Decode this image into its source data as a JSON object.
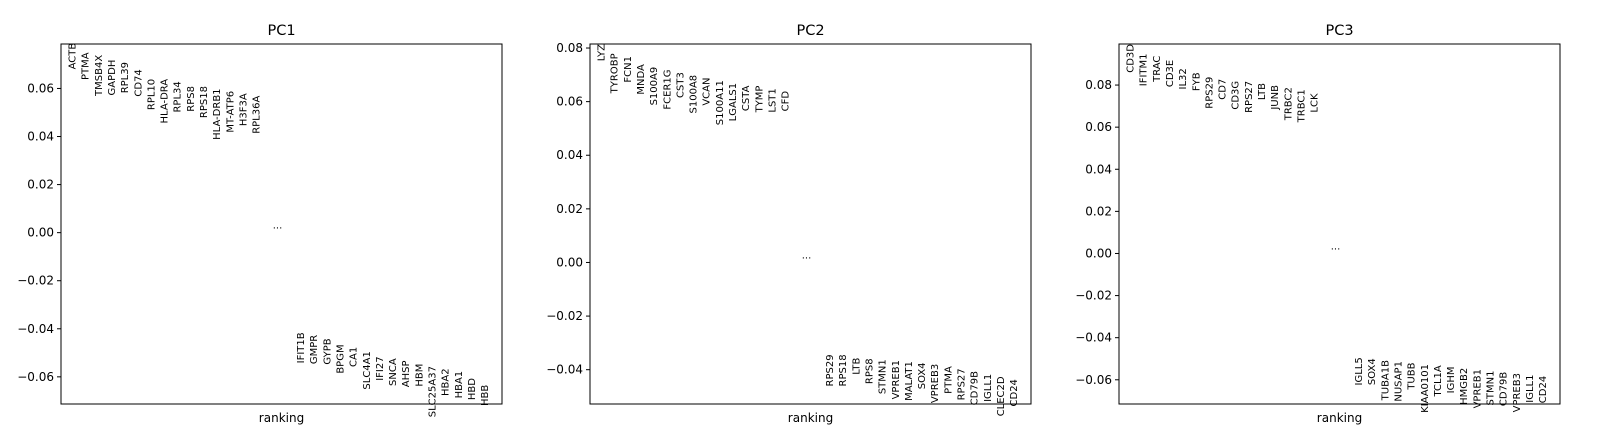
{
  "chart_data": [
    {
      "type": "scatter",
      "title": "PC1",
      "xlabel": "ranking",
      "ylabel": "",
      "ylim": [
        -0.0713,
        0.0785
      ],
      "yticks": [
        -0.06,
        -0.04,
        -0.02,
        0.0,
        0.02,
        0.04,
        0.06
      ],
      "ytick_labels": [
        "−0.06",
        "−0.04",
        "−0.02",
        "0.00",
        "0.02",
        "0.04",
        "0.06"
      ],
      "ellipsis": {
        "label": "...",
        "value": 0.0
      },
      "top_genes": [
        {
          "gene": "ACTB",
          "value": 0.079
        },
        {
          "gene": "PTMA",
          "value": 0.075
        },
        {
          "gene": "TMSB4X",
          "value": 0.074
        },
        {
          "gene": "GAPDH",
          "value": 0.072
        },
        {
          "gene": "RPL39",
          "value": 0.071
        },
        {
          "gene": "CD74",
          "value": 0.068
        },
        {
          "gene": "RPL10",
          "value": 0.064
        },
        {
          "gene": "HLA-DRA",
          "value": 0.064
        },
        {
          "gene": "RPL34",
          "value": 0.063
        },
        {
          "gene": "RPS8",
          "value": 0.061
        },
        {
          "gene": "RPS18",
          "value": 0.061
        },
        {
          "gene": "HLA-DRB1",
          "value": 0.06
        },
        {
          "gene": "MT-ATP6",
          "value": 0.059
        },
        {
          "gene": "H3F3A",
          "value": 0.058
        },
        {
          "gene": "RPL36A",
          "value": 0.057
        }
      ],
      "bottom_genes": [
        {
          "gene": "IFIT1B",
          "value": -0.0415
        },
        {
          "gene": "GMPR",
          "value": -0.0425
        },
        {
          "gene": "GYPB",
          "value": -0.044
        },
        {
          "gene": "BPGM",
          "value": -0.0465
        },
        {
          "gene": "CA1",
          "value": -0.0475
        },
        {
          "gene": "SLC4A1",
          "value": -0.0493
        },
        {
          "gene": "IFI27",
          "value": -0.0515
        },
        {
          "gene": "SNCA",
          "value": -0.0523
        },
        {
          "gene": "AHSP",
          "value": -0.0532
        },
        {
          "gene": "HBM",
          "value": -0.0545
        },
        {
          "gene": "SLC25A37",
          "value": -0.0555
        },
        {
          "gene": "HBA2",
          "value": -0.0565
        },
        {
          "gene": "HBA1",
          "value": -0.0575
        },
        {
          "gene": "HBD",
          "value": -0.0605
        },
        {
          "gene": "HBB",
          "value": -0.0633
        }
      ]
    },
    {
      "type": "scatter",
      "title": "PC2",
      "xlabel": "ranking",
      "ylabel": "",
      "ylim": [
        -0.0528,
        0.0815
      ],
      "yticks": [
        -0.04,
        -0.02,
        0.0,
        0.02,
        0.04,
        0.06,
        0.08
      ],
      "ytick_labels": [
        "−0.04",
        "−0.02",
        "0.00",
        "0.02",
        "0.04",
        "0.06",
        "0.08"
      ],
      "ellipsis": {
        "label": "...",
        "value": 0.0
      },
      "top_genes": [
        {
          "gene": "LYZ",
          "value": 0.0815
        },
        {
          "gene": "TYROBP",
          "value": 0.078
        },
        {
          "gene": "FCN1",
          "value": 0.077
        },
        {
          "gene": "MNDA",
          "value": 0.074
        },
        {
          "gene": "S100A9",
          "value": 0.073
        },
        {
          "gene": "FCER1G",
          "value": 0.072
        },
        {
          "gene": "CST3",
          "value": 0.071
        },
        {
          "gene": "S100A8",
          "value": 0.07
        },
        {
          "gene": "VCAN",
          "value": 0.069
        },
        {
          "gene": "S100A11",
          "value": 0.068
        },
        {
          "gene": "LGALS1",
          "value": 0.067
        },
        {
          "gene": "CSTA",
          "value": 0.066
        },
        {
          "gene": "TYMP",
          "value": 0.066
        },
        {
          "gene": "LST1",
          "value": 0.065
        },
        {
          "gene": "CFD",
          "value": 0.064
        }
      ],
      "bottom_genes": [
        {
          "gene": "RPS29",
          "value": -0.0343
        },
        {
          "gene": "RPS18",
          "value": -0.0343
        },
        {
          "gene": "LTB",
          "value": -0.0355
        },
        {
          "gene": "RPS8",
          "value": -0.0358
        },
        {
          "gene": "STMN1",
          "value": -0.0361
        },
        {
          "gene": "VPREB1",
          "value": -0.0364
        },
        {
          "gene": "MALAT1",
          "value": -0.0368
        },
        {
          "gene": "SOX4",
          "value": -0.0373
        },
        {
          "gene": "VPREB3",
          "value": -0.0378
        },
        {
          "gene": "PTMA",
          "value": -0.0387
        },
        {
          "gene": "RPS27",
          "value": -0.0395
        },
        {
          "gene": "CD79B",
          "value": -0.0405
        },
        {
          "gene": "IGLL1",
          "value": -0.0415
        },
        {
          "gene": "CLEC2D",
          "value": -0.0425
        },
        {
          "gene": "CD24",
          "value": -0.0435
        }
      ]
    },
    {
      "type": "scatter",
      "title": "PC3",
      "xlabel": "ranking",
      "ylabel": "",
      "ylim": [
        -0.0715,
        0.0995
      ],
      "yticks": [
        -0.06,
        -0.04,
        -0.02,
        0.0,
        0.02,
        0.04,
        0.06,
        0.08
      ],
      "ytick_labels": [
        "−0.06",
        "−0.04",
        "−0.02",
        "0.00",
        "0.02",
        "0.04",
        "0.06",
        "0.08"
      ],
      "ellipsis": {
        "label": "...",
        "value": 0.0
      },
      "top_genes": [
        {
          "gene": "CD3D",
          "value": 0.0995
        },
        {
          "gene": "IFITM1",
          "value": 0.095
        },
        {
          "gene": "TRAC",
          "value": 0.094
        },
        {
          "gene": "CD3E",
          "value": 0.092
        },
        {
          "gene": "IL32",
          "value": 0.088
        },
        {
          "gene": "FYB",
          "value": 0.086
        },
        {
          "gene": "RPS29",
          "value": 0.084
        },
        {
          "gene": "CD7",
          "value": 0.083
        },
        {
          "gene": "CD3G",
          "value": 0.082
        },
        {
          "gene": "RPS27",
          "value": 0.082
        },
        {
          "gene": "LTB",
          "value": 0.081
        },
        {
          "gene": "JUNB",
          "value": 0.08
        },
        {
          "gene": "TRBC2",
          "value": 0.079
        },
        {
          "gene": "TRBC1",
          "value": 0.078
        },
        {
          "gene": "LCK",
          "value": 0.076
        }
      ],
      "bottom_genes": [
        {
          "gene": "IGLL5",
          "value": -0.0493
        },
        {
          "gene": "SOX4",
          "value": -0.0498
        },
        {
          "gene": "TUBA1B",
          "value": -0.0506
        },
        {
          "gene": "NUSAP1",
          "value": -0.0511
        },
        {
          "gene": "TUBB",
          "value": -0.0518
        },
        {
          "gene": "KIAA0101",
          "value": -0.0525
        },
        {
          "gene": "TCL1A",
          "value": -0.0531
        },
        {
          "gene": "IGHM",
          "value": -0.0537
        },
        {
          "gene": "HMGB2",
          "value": -0.0543
        },
        {
          "gene": "VPREB1",
          "value": -0.0549
        },
        {
          "gene": "STMN1",
          "value": -0.0556
        },
        {
          "gene": "CD79B",
          "value": -0.0562
        },
        {
          "gene": "VPREB3",
          "value": -0.0568
        },
        {
          "gene": "IGLL1",
          "value": -0.0575
        },
        {
          "gene": "CD24",
          "value": -0.0581
        }
      ]
    }
  ]
}
